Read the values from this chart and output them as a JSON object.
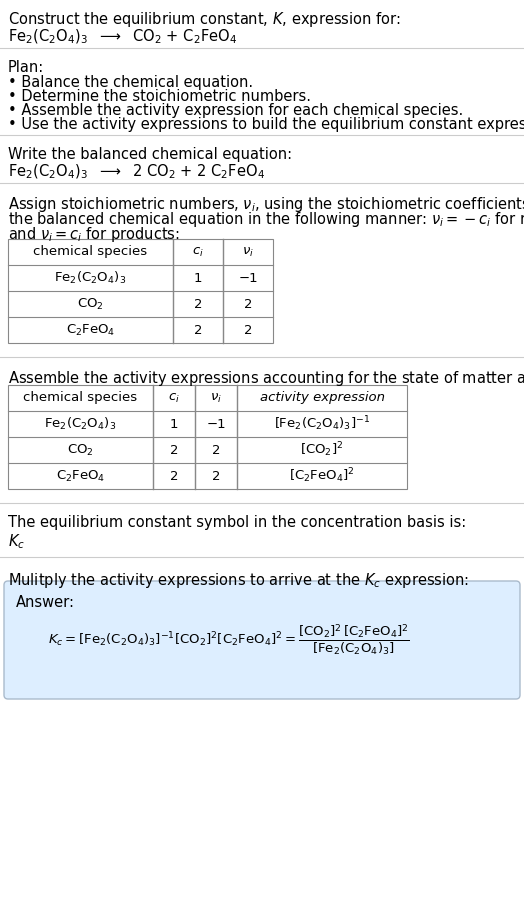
{
  "bg_color": "#ffffff",
  "font_size": 10.5,
  "small_font": 9.5,
  "title_line1": "Construct the equilibrium constant, $K$, expression for:",
  "title_eq": "Fe$_2$(C$_2$O$_4$)$_3$  $\\longrightarrow$  CO$_2$ + C$_2$FeO$_4$",
  "plan_header": "Plan:",
  "plan_bullets": [
    "• Balance the chemical equation.",
    "• Determine the stoichiometric numbers.",
    "• Assemble the activity expression for each chemical species.",
    "• Use the activity expressions to build the equilibrium constant expression."
  ],
  "balanced_header": "Write the balanced chemical equation:",
  "balanced_eq": "Fe$_2$(C$_2$O$_4$)$_3$  $\\longrightarrow$  2 CO$_2$ + 2 C$_2$FeO$_4$",
  "stoich_line1": "Assign stoichiometric numbers, $\\nu_i$, using the stoichiometric coefficients, $c_i$, from",
  "stoich_line2": "the balanced chemical equation in the following manner: $\\nu_i = -c_i$ for reactants",
  "stoich_line3": "and $\\nu_i = c_i$ for products:",
  "table1_rows": [
    [
      "chemical species",
      "$c_i$",
      "$\\nu_i$"
    ],
    [
      "Fe$_2$(C$_2$O$_4$)$_3$",
      "1",
      "−1"
    ],
    [
      "CO$_2$",
      "2",
      "2"
    ],
    [
      "C$_2$FeO$_4$",
      "2",
      "2"
    ]
  ],
  "assemble_text": "Assemble the activity expressions accounting for the state of matter and $\\nu_i$:",
  "table2_rows": [
    [
      "chemical species",
      "$c_i$",
      "$\\nu_i$",
      "activity expression"
    ],
    [
      "Fe$_2$(C$_2$O$_4$)$_3$",
      "1",
      "−1",
      "[Fe$_2$(C$_2$O$_4$)$_3$]$^{-1}$"
    ],
    [
      "CO$_2$",
      "2",
      "2",
      "[CO$_2$]$^2$"
    ],
    [
      "C$_2$FeO$_4$",
      "2",
      "2",
      "[C$_2$FeO$_4$]$^2$"
    ]
  ],
  "kc_text": "The equilibrium constant symbol in the concentration basis is:",
  "kc_symbol": "$K_c$",
  "multiply_text": "Mulitply the activity expressions to arrive at the $K_c$ expression:",
  "answer_label": "Answer:",
  "answer_bg": "#ddeeff",
  "answer_border": "#aabbcc",
  "sep_color": "#cccccc",
  "table_color": "#888888"
}
